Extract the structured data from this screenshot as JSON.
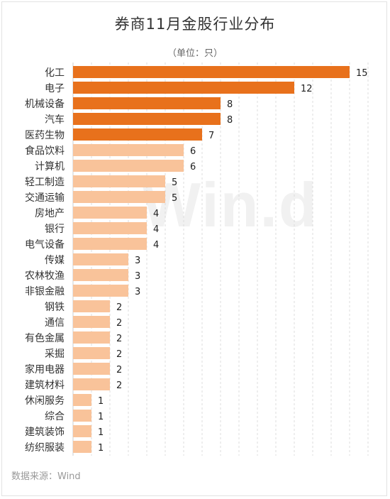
{
  "chart_data": {
    "type": "bar",
    "orientation": "horizontal",
    "title": "券商11月金股行业分布",
    "unit_label": "（单位：只）",
    "source": "数据来源：Wind",
    "watermark": "Win.d",
    "xlim": [
      0,
      16
    ],
    "grid": true,
    "colors": {
      "top": "#e8711c",
      "other": "#f9c39a"
    },
    "categories": [
      "化工",
      "电子",
      "机械设备",
      "汽车",
      "医药生物",
      "食品饮料",
      "计算机",
      "轻工制造",
      "交通运输",
      "房地产",
      "银行",
      "电气设备",
      "传媒",
      "农林牧渔",
      "非银金融",
      "钢铁",
      "通信",
      "有色金属",
      "采掘",
      "家用电器",
      "建筑材料",
      "休闲服务",
      "综合",
      "建筑装饰",
      "纺织服装"
    ],
    "values": [
      15,
      12,
      8,
      8,
      7,
      6,
      6,
      5,
      5,
      4,
      4,
      4,
      3,
      3,
      3,
      2,
      2,
      2,
      2,
      2,
      2,
      1,
      1,
      1,
      1
    ],
    "highlight_count": 5
  }
}
